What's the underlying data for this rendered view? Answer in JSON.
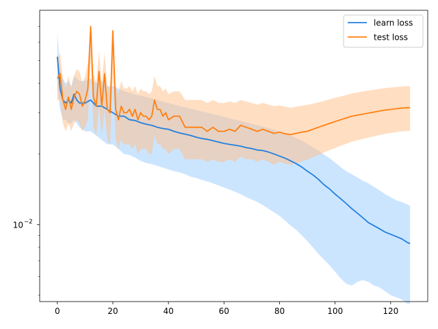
{
  "chart_data": {
    "type": "line",
    "title": "",
    "xlabel": "",
    "ylabel": "",
    "yscale": "log",
    "xlim": [
      -6.35,
      133.35
    ],
    "ylim": [
      0.0047,
      0.082
    ],
    "grid": false,
    "legend_position": "top-right",
    "x_ticks": [
      0,
      20,
      40,
      60,
      80,
      100,
      120
    ],
    "x_tick_labels": [
      "0",
      "20",
      "40",
      "60",
      "80",
      "100",
      "120"
    ],
    "y_major_ticks": [
      0.01
    ],
    "y_major_tick_labels": [
      "10",
      "−2"
    ],
    "y_minor_ticks": [
      0.005,
      0.006,
      0.007,
      0.008,
      0.009,
      0.02,
      0.03,
      0.04,
      0.05,
      0.06,
      0.07
    ],
    "series": [
      {
        "name": "learn loss",
        "color": "#1f7fe0",
        "band_color": "#99ccff",
        "band_opacity": 0.5,
        "x": [
          0,
          1,
          2,
          3,
          4,
          5,
          6,
          7,
          8,
          10,
          12,
          14,
          16,
          18,
          20,
          22,
          24,
          26,
          28,
          30,
          32,
          34,
          36,
          38,
          40,
          42,
          44,
          46,
          48,
          50,
          52,
          54,
          56,
          58,
          60,
          62,
          64,
          66,
          68,
          70,
          72,
          74,
          76,
          78,
          80,
          82,
          84,
          86,
          88,
          90,
          92,
          94,
          96,
          98,
          100,
          102,
          104,
          106,
          108,
          110,
          112,
          114,
          116,
          118,
          120,
          122,
          124,
          126,
          127
        ],
        "y": [
          0.052,
          0.038,
          0.034,
          0.033,
          0.034,
          0.033,
          0.036,
          0.034,
          0.033,
          0.033,
          0.034,
          0.032,
          0.032,
          0.031,
          0.03,
          0.029,
          0.029,
          0.028,
          0.0278,
          0.0272,
          0.0268,
          0.0265,
          0.026,
          0.0257,
          0.0255,
          0.025,
          0.0246,
          0.0243,
          0.024,
          0.0236,
          0.0233,
          0.0231,
          0.0228,
          0.0225,
          0.0222,
          0.022,
          0.0218,
          0.0216,
          0.0213,
          0.0211,
          0.0208,
          0.0207,
          0.0204,
          0.02,
          0.0196,
          0.0192,
          0.0187,
          0.0182,
          0.0176,
          0.0169,
          0.0163,
          0.0156,
          0.0148,
          0.0142,
          0.0135,
          0.0129,
          0.0123,
          0.0117,
          0.0112,
          0.0107,
          0.0102,
          0.0099,
          0.0096,
          0.0093,
          0.0091,
          0.0089,
          0.0087,
          0.0084,
          0.0083
        ],
        "y_lower": [
          0.038,
          0.031,
          0.028,
          0.028,
          0.027,
          0.027,
          0.028,
          0.027,
          0.026,
          0.025,
          0.025,
          0.024,
          0.023,
          0.022,
          0.022,
          0.021,
          0.02,
          0.0198,
          0.0193,
          0.0187,
          0.0183,
          0.0181,
          0.0178,
          0.0175,
          0.0172,
          0.0169,
          0.0167,
          0.0164,
          0.016,
          0.0158,
          0.0155,
          0.0153,
          0.015,
          0.0147,
          0.0144,
          0.0141,
          0.0138,
          0.0135,
          0.0131,
          0.0128,
          0.0125,
          0.0121,
          0.0117,
          0.0113,
          0.0109,
          0.0104,
          0.0099,
          0.0095,
          0.009,
          0.0085,
          0.008,
          0.0075,
          0.0071,
          0.0067,
          0.0063,
          0.0059,
          0.0056,
          0.0055,
          0.0057,
          0.0058,
          0.0057,
          0.0055,
          0.0054,
          0.0052,
          0.005,
          0.0049,
          0.0048,
          0.0046,
          0.0046
        ],
        "y_upper": [
          0.066,
          0.046,
          0.042,
          0.04,
          0.041,
          0.039,
          0.043,
          0.042,
          0.041,
          0.041,
          0.042,
          0.04,
          0.041,
          0.039,
          0.039,
          0.038,
          0.037,
          0.0365,
          0.0358,
          0.0355,
          0.035,
          0.0345,
          0.034,
          0.0335,
          0.033,
          0.0325,
          0.032,
          0.0316,
          0.0312,
          0.0308,
          0.0304,
          0.03,
          0.0296,
          0.0292,
          0.0288,
          0.0284,
          0.028,
          0.0277,
          0.0273,
          0.0269,
          0.0265,
          0.0262,
          0.0258,
          0.0254,
          0.0249,
          0.0245,
          0.024,
          0.0234,
          0.0228,
          0.0221,
          0.0214,
          0.0207,
          0.0199,
          0.0192,
          0.0184,
          0.0176,
          0.0169,
          0.0164,
          0.0159,
          0.0154,
          0.015,
          0.0145,
          0.014,
          0.0135,
          0.0131,
          0.0127,
          0.0125,
          0.0122,
          0.012
        ]
      },
      {
        "name": "test loss",
        "color": "#ff7f0e",
        "band_color": "#ffbe86",
        "band_opacity": 0.5,
        "x": [
          0,
          1,
          2,
          3,
          4,
          5,
          6,
          7,
          8,
          9,
          10,
          11,
          12,
          13,
          14,
          15,
          16,
          17,
          18,
          19,
          20,
          21,
          22,
          23,
          24,
          25,
          26,
          27,
          28,
          29,
          30,
          31,
          32,
          33,
          34,
          35,
          36,
          37,
          38,
          39,
          40,
          42,
          44,
          46,
          48,
          50,
          52,
          54,
          56,
          58,
          60,
          62,
          64,
          66,
          68,
          70,
          72,
          74,
          76,
          78,
          80,
          82,
          84,
          86,
          88,
          90,
          92,
          94,
          96,
          98,
          100,
          102,
          104,
          106,
          108,
          110,
          112,
          114,
          116,
          118,
          120,
          122,
          124,
          126,
          127
        ],
        "y": [
          0.042,
          0.044,
          0.034,
          0.031,
          0.035,
          0.031,
          0.035,
          0.037,
          0.036,
          0.032,
          0.034,
          0.038,
          0.07,
          0.035,
          0.032,
          0.045,
          0.032,
          0.044,
          0.031,
          0.03,
          0.067,
          0.031,
          0.028,
          0.032,
          0.03,
          0.03,
          0.031,
          0.029,
          0.031,
          0.028,
          0.03,
          0.029,
          0.029,
          0.028,
          0.029,
          0.034,
          0.031,
          0.031,
          0.029,
          0.03,
          0.028,
          0.029,
          0.029,
          0.026,
          0.026,
          0.026,
          0.026,
          0.025,
          0.026,
          0.025,
          0.025,
          0.0255,
          0.025,
          0.0265,
          0.026,
          0.0255,
          0.025,
          0.0255,
          0.025,
          0.0245,
          0.0248,
          0.0244,
          0.0242,
          0.0245,
          0.0248,
          0.025,
          0.0255,
          0.026,
          0.0265,
          0.027,
          0.0275,
          0.028,
          0.0285,
          0.029,
          0.0293,
          0.0296,
          0.0299,
          0.0302,
          0.0305,
          0.0308,
          0.031,
          0.0312,
          0.0314,
          0.0315,
          0.0315
        ],
        "y_lower": [
          0.034,
          0.034,
          0.027,
          0.025,
          0.027,
          0.025,
          0.027,
          0.028,
          0.027,
          0.025,
          0.026,
          0.028,
          0.05,
          0.026,
          0.024,
          0.032,
          0.024,
          0.031,
          0.023,
          0.022,
          0.045,
          0.023,
          0.021,
          0.023,
          0.022,
          0.022,
          0.022,
          0.021,
          0.022,
          0.02,
          0.021,
          0.021,
          0.021,
          0.02,
          0.02,
          0.024,
          0.022,
          0.022,
          0.021,
          0.021,
          0.02,
          0.021,
          0.021,
          0.019,
          0.019,
          0.019,
          0.019,
          0.0185,
          0.019,
          0.0185,
          0.0185,
          0.019,
          0.0185,
          0.0195,
          0.019,
          0.019,
          0.0185,
          0.019,
          0.0185,
          0.018,
          0.0185,
          0.0182,
          0.018,
          0.0183,
          0.0186,
          0.0189,
          0.0194,
          0.0198,
          0.0203,
          0.0208,
          0.0212,
          0.0217,
          0.0221,
          0.0226,
          0.0229,
          0.0232,
          0.0235,
          0.0238,
          0.0241,
          0.0244,
          0.0246,
          0.0248,
          0.025,
          0.0251,
          0.0251
        ],
        "y_upper": [
          0.051,
          0.054,
          0.042,
          0.038,
          0.043,
          0.038,
          0.043,
          0.046,
          0.045,
          0.04,
          0.043,
          0.049,
          0.072,
          0.044,
          0.04,
          0.055,
          0.04,
          0.054,
          0.039,
          0.038,
          0.07,
          0.039,
          0.036,
          0.041,
          0.038,
          0.038,
          0.039,
          0.037,
          0.039,
          0.036,
          0.038,
          0.037,
          0.037,
          0.036,
          0.037,
          0.043,
          0.039,
          0.039,
          0.037,
          0.038,
          0.036,
          0.037,
          0.037,
          0.034,
          0.034,
          0.034,
          0.034,
          0.033,
          0.034,
          0.033,
          0.033,
          0.0335,
          0.033,
          0.034,
          0.0335,
          0.033,
          0.0325,
          0.033,
          0.0325,
          0.032,
          0.0322,
          0.0318,
          0.0315,
          0.0318,
          0.0321,
          0.0324,
          0.0328,
          0.0332,
          0.0337,
          0.0342,
          0.0347,
          0.0352,
          0.0357,
          0.0362,
          0.0366,
          0.037,
          0.0373,
          0.0376,
          0.0379,
          0.0382,
          0.0384,
          0.0386,
          0.0388,
          0.039,
          0.0388
        ]
      }
    ]
  }
}
